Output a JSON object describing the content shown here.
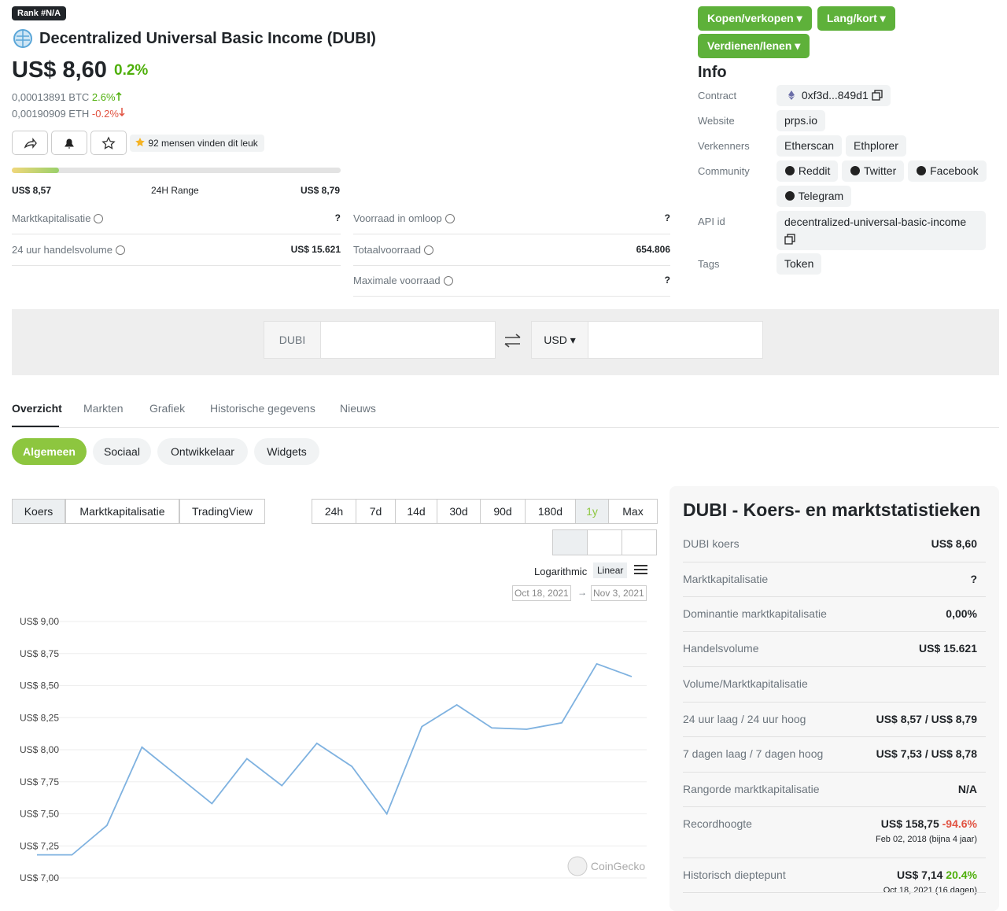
{
  "header": {
    "rank": "Rank #N/A",
    "name": "Decentralized Universal Basic Income (DUBI)",
    "price": "US$ 8,60",
    "change": "0.2%",
    "btc": "0,00013891 BTC",
    "btc_change": "2.6%",
    "eth": "0,00190909 ETH",
    "eth_change": "-0.2%",
    "likes": "92 mensen vinden dit leuk"
  },
  "range": {
    "low": "US$ 8,57",
    "label": "24H Range",
    "high": "US$ 8,79"
  },
  "stats_left": [
    {
      "label": "Marktkapitalisatie",
      "value": "?"
    },
    {
      "label": "24 uur handelsvolume",
      "value": "US$ 15.621"
    }
  ],
  "stats_right": [
    {
      "label": "Voorraad in omloop",
      "value": "?"
    },
    {
      "label": "Totaalvoorraad",
      "value": "654.806"
    },
    {
      "label": "Maximale voorraad",
      "value": "?"
    }
  ],
  "buttons": [
    "Kopen/verkopen",
    "Lang/kort",
    "Verdienen/lenen"
  ],
  "info": {
    "title": "Info",
    "rows": [
      {
        "label": "Contract",
        "items": [
          "0xf3d...849d1"
        ]
      },
      {
        "label": "Website",
        "items": [
          "prps.io"
        ]
      },
      {
        "label": "Verkenners",
        "items": [
          "Etherscan",
          "Ethplorer"
        ]
      },
      {
        "label": "Community",
        "items": [
          "Reddit",
          "Twitter",
          "Facebook",
          "Telegram"
        ]
      },
      {
        "label": "API id",
        "items": [
          "decentralized-universal-basic-income"
        ]
      },
      {
        "label": "Tags",
        "items": [
          "Token"
        ]
      }
    ]
  },
  "converter": {
    "from": "DUBI",
    "to": "USD"
  },
  "tabs": [
    "Overzicht",
    "Markten",
    "Grafiek",
    "Historische gegevens",
    "Nieuws"
  ],
  "subtabs": [
    "Algemeen",
    "Sociaal",
    "Ontwikkelaar",
    "Widgets"
  ],
  "chart_tabs": [
    "Koers",
    "Marktkapitalisatie",
    "TradingView"
  ],
  "ranges": [
    "24h",
    "7d",
    "14d",
    "30d",
    "90d",
    "180d",
    "1y",
    "Max"
  ],
  "scales": [
    "Logarithmic",
    "Linear"
  ],
  "dates": [
    "Oct 18, 2021",
    "Nov 3, 2021"
  ],
  "chart": {
    "type": "line",
    "color": "#7fb2e0",
    "ylim": [
      7,
      9
    ],
    "yticks": [
      {
        "value": 7,
        "label": "US$ 7,00"
      },
      {
        "value": 7.25,
        "label": "US$ 7,25"
      },
      {
        "value": 7.5,
        "label": "US$ 7,50"
      },
      {
        "value": 7.75,
        "label": "US$ 7,75"
      },
      {
        "value": 8,
        "label": "US$ 8,00"
      },
      {
        "value": 8.25,
        "label": "US$ 8,25"
      },
      {
        "value": 8.5,
        "label": "US$ 8,50"
      },
      {
        "value": 8.75,
        "label": "US$ 8,75"
      },
      {
        "value": 9,
        "label": "US$ 9,00"
      }
    ],
    "values": [
      7.18,
      7.18,
      7.41,
      8.02,
      7.8,
      7.58,
      7.93,
      7.72,
      8.05,
      7.87,
      7.5,
      8.18,
      8.35,
      8.17,
      8.16,
      8.21,
      8.67,
      8.57
    ],
    "watermark": "CoinGecko"
  },
  "panel": {
    "title": "DUBI - Koers- en marktstatistieken",
    "rows": [
      {
        "label": "DUBI koers",
        "value": "US$ 8,60"
      },
      {
        "label": "Marktkapitalisatie",
        "value": "?"
      },
      {
        "label": "Dominantie marktkapitalisatie",
        "value": "0,00%"
      },
      {
        "label": "Handelsvolume",
        "value": "US$ 15.621"
      },
      {
        "label": "Volume/Marktkapitalisatie"
      },
      {
        "label": "24 uur laag / 24 uur hoog",
        "value": "US$ 8,57 / US$ 8,79"
      },
      {
        "label": "7 dagen laag / 7 dagen hoog",
        "value": "US$ 7,53 / US$ 8,78"
      },
      {
        "label": "Rangorde marktkapitalisatie",
        "value": "N/A"
      },
      {
        "label": "Recordhoogte",
        "value": "US$ 158,75",
        "change": "-94.6%",
        "sub": "Feb 02, 2018 (bijna 4 jaar)"
      },
      {
        "label": "Historisch dieptepunt",
        "value": "US$ 7,14",
        "change": "20.4%",
        "sub": "Oct 18, 2021 (16 dagen)"
      }
    ]
  }
}
